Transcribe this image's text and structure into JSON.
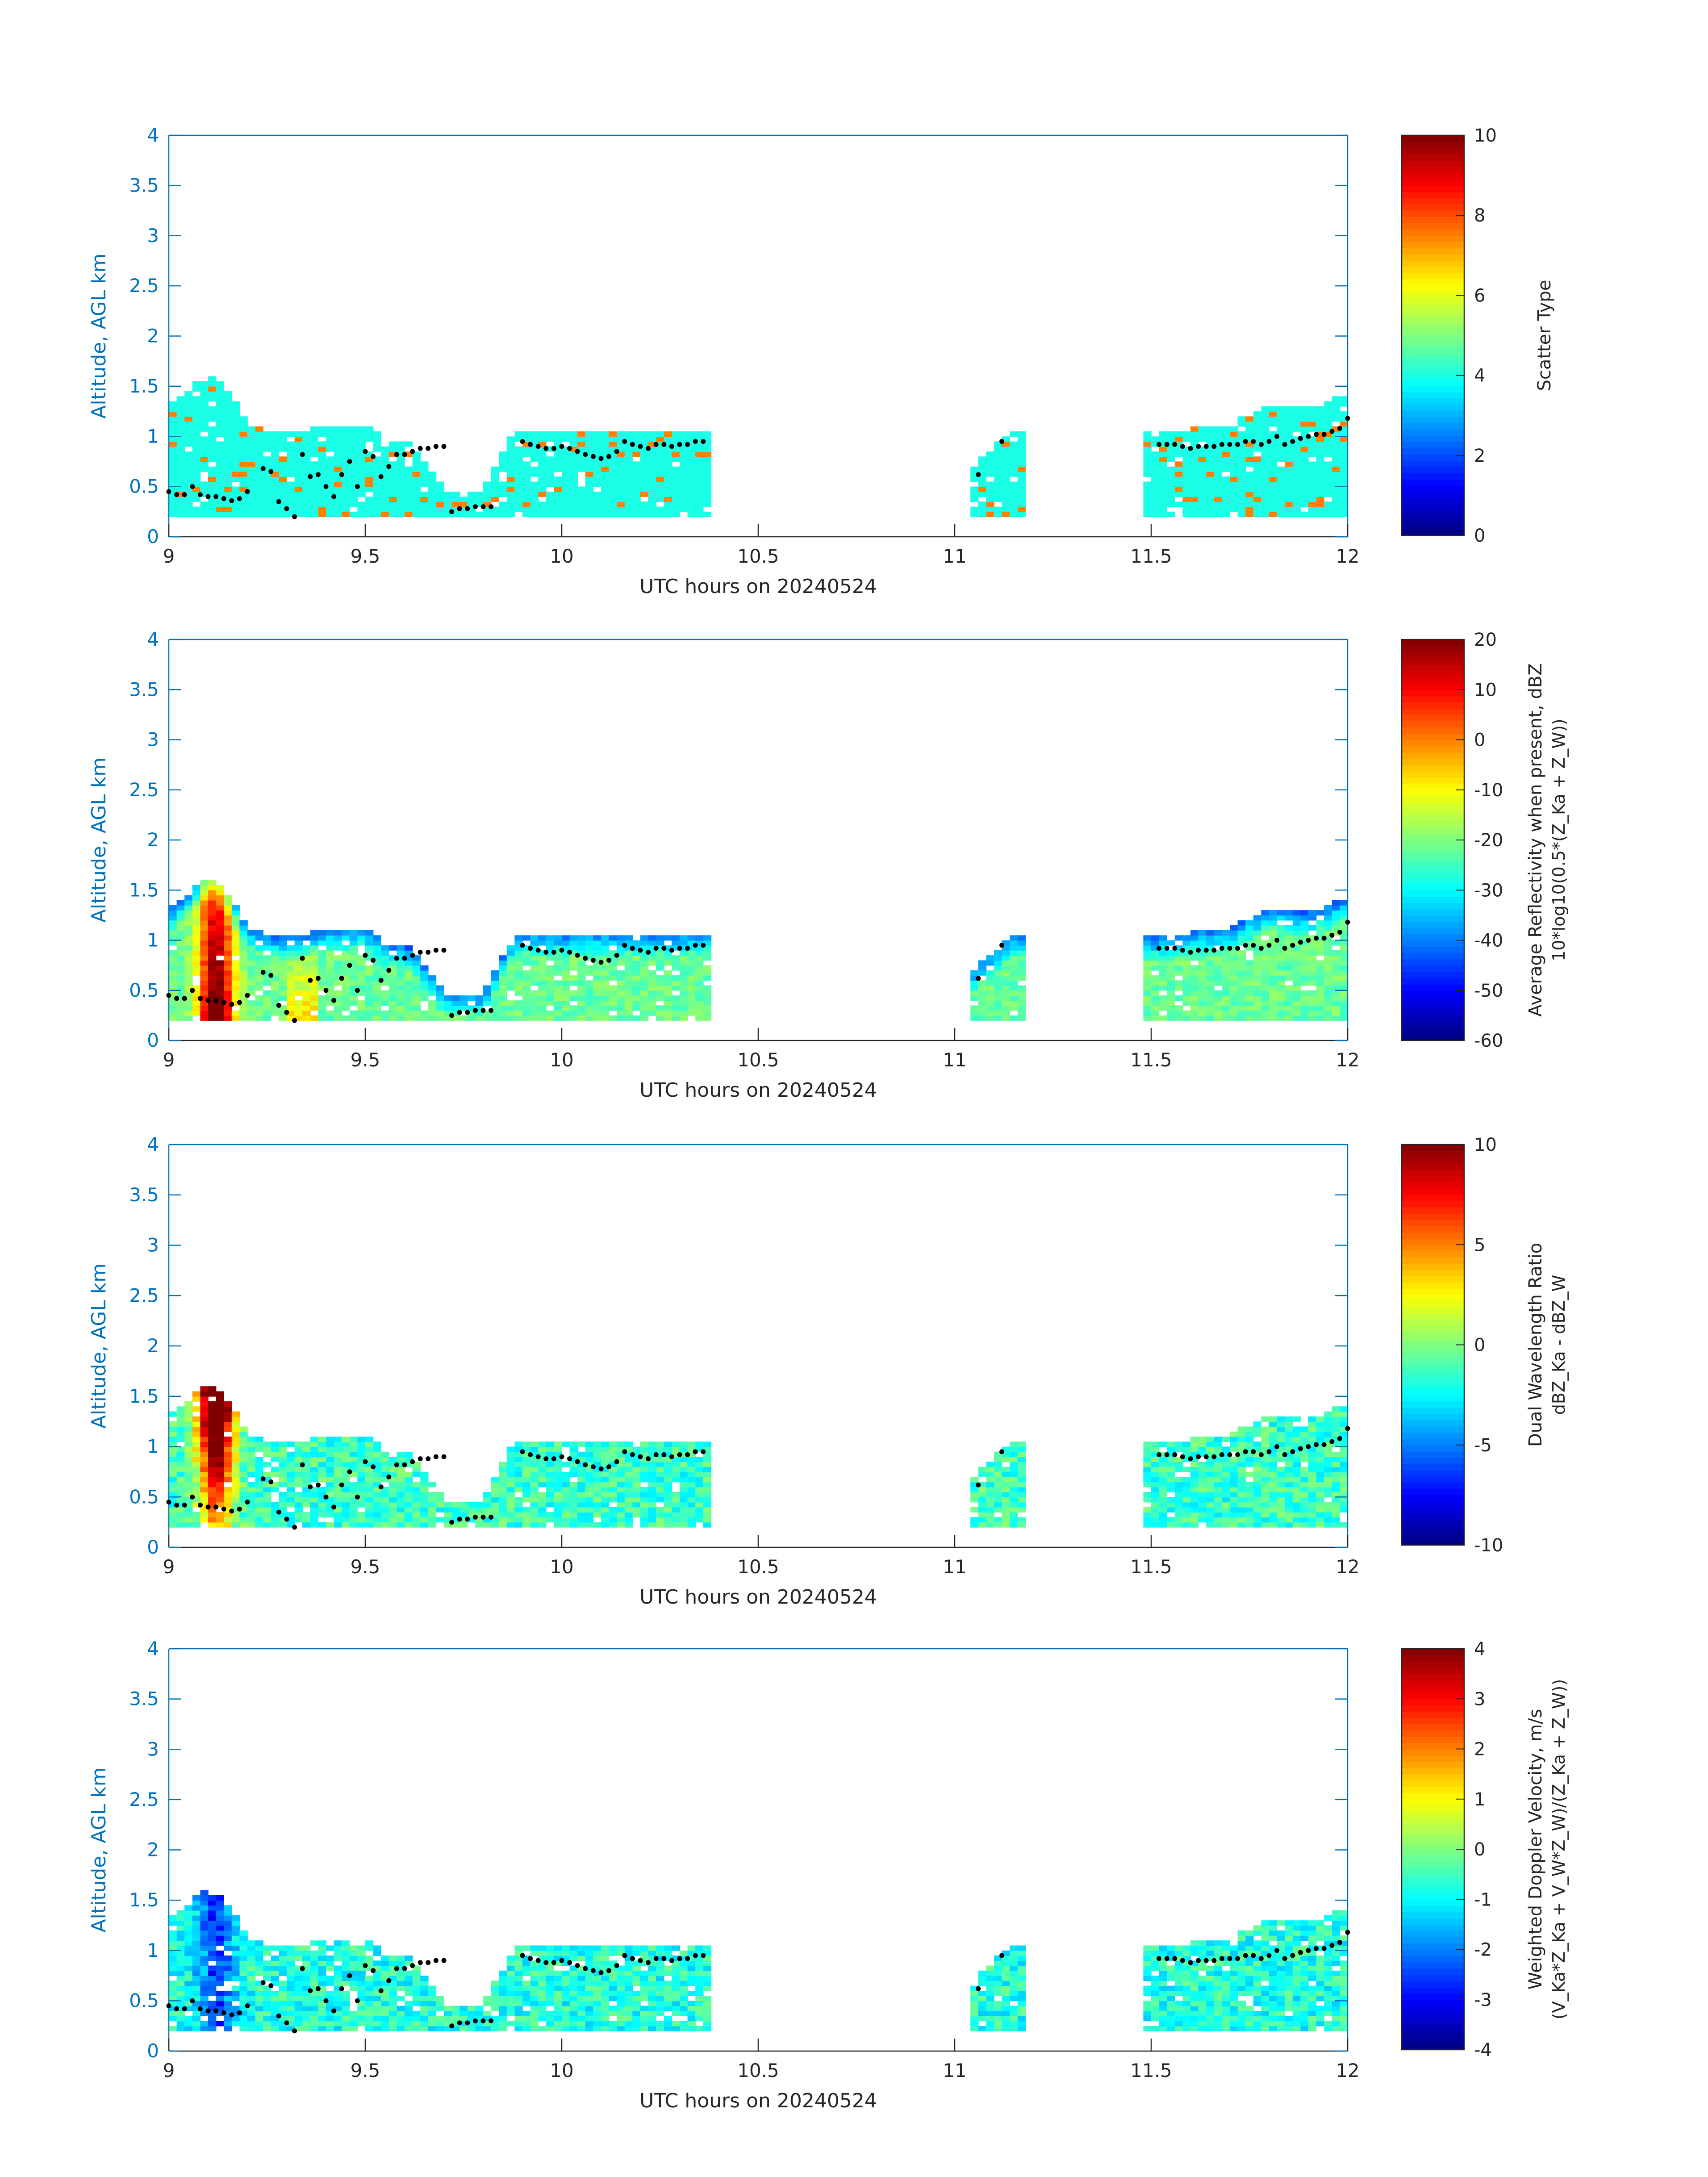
{
  "figure": {
    "xlabel": "UTC hours on 20240524",
    "ylabel": "Altitude, AGL km",
    "colors": {
      "axis_blue": "#0072bd",
      "axis_black": "#262626",
      "dot": "#000000"
    }
  },
  "chart_data": [
    {
      "type": "heatmap",
      "panel": "scatter-type",
      "xlabel": "UTC hours on 20240524",
      "ylabel": "Altitude, AGL km",
      "xlim": [
        9,
        12
      ],
      "ylim": [
        0,
        4
      ],
      "xticks": [
        "9",
        "9.5",
        "10",
        "10.5",
        "11",
        "11.5",
        "12"
      ],
      "yticks": [
        "0",
        "0.5",
        "1",
        "1.5",
        "2",
        "2.5",
        "3",
        "3.5",
        "4"
      ],
      "colorbar": {
        "label": "Scatter Type",
        "label2": "",
        "range": [
          0,
          10
        ],
        "ticks": [
          "0",
          "2",
          "4",
          "6",
          "8",
          "10"
        ]
      },
      "clim": [
        0,
        10
      ],
      "field": "scatter",
      "value_hint": "4 (cyan) for cloud, 7.5 (orange-red) for isolated echoes",
      "cloud_top_km": [
        [
          9.0,
          1.3
        ],
        [
          9.05,
          1.45
        ],
        [
          9.1,
          1.6
        ],
        [
          9.15,
          1.45
        ],
        [
          9.2,
          1.1
        ],
        [
          9.3,
          1.0
        ],
        [
          9.4,
          1.1
        ],
        [
          9.5,
          1.1
        ],
        [
          9.55,
          0.95
        ],
        [
          9.62,
          0.9
        ],
        [
          9.7,
          0.45
        ],
        [
          9.8,
          0.45
        ],
        [
          9.88,
          1.05
        ],
        [
          10.0,
          1.05
        ],
        [
          10.1,
          1.05
        ],
        [
          10.2,
          1.05
        ],
        [
          10.36,
          1.05
        ],
        [
          11.05,
          0.7
        ],
        [
          11.15,
          1.05
        ],
        [
          11.5,
          1.0
        ],
        [
          11.6,
          1.05
        ],
        [
          11.7,
          1.1
        ],
        [
          11.8,
          1.3
        ],
        [
          11.9,
          1.25
        ],
        [
          12.0,
          1.4
        ]
      ]
    },
    {
      "type": "heatmap",
      "panel": "reflectivity",
      "xlabel": "UTC hours on 20240524",
      "ylabel": "Altitude, AGL km",
      "xlim": [
        9,
        12
      ],
      "ylim": [
        0,
        4
      ],
      "xticks": [
        "9",
        "9.5",
        "10",
        "10.5",
        "11",
        "11.5",
        "12"
      ],
      "yticks": [
        "0",
        "0.5",
        "1",
        "1.5",
        "2",
        "2.5",
        "3",
        "3.5",
        "4"
      ],
      "colorbar": {
        "label": "Average Reflectivity when present, dBZ",
        "label2": "10*log10(0.5*(Z_Ka + Z_W))",
        "range": [
          -60,
          20
        ],
        "ticks": [
          "-60",
          "-50",
          "-40",
          "-30",
          "-20",
          "-10",
          "0",
          "10",
          "20"
        ]
      },
      "clim": [
        -60,
        20
      ],
      "field": "reflectivity",
      "value_hint": "up to ~15 dBZ near 9.1 h, -40 to -50 dBZ at cloud edges"
    },
    {
      "type": "heatmap",
      "panel": "dual-wavelength-ratio",
      "xlabel": "UTC hours on 20240524",
      "ylabel": "Altitude, AGL km",
      "xlim": [
        9,
        12
      ],
      "ylim": [
        0,
        4
      ],
      "xticks": [
        "9",
        "9.5",
        "10",
        "10.5",
        "11",
        "11.5",
        "12"
      ],
      "yticks": [
        "0",
        "0.5",
        "1",
        "1.5",
        "2",
        "2.5",
        "3",
        "3.5",
        "4"
      ],
      "colorbar": {
        "label": "Dual Wavelength Ratio",
        "label2": "dBZ_Ka - dBZ_W",
        "range": [
          -10,
          10
        ],
        "ticks": [
          "-10",
          "-5",
          "0",
          "5",
          "10"
        ]
      },
      "clim": [
        -10,
        10
      ],
      "field": "dwr",
      "value_hint": "up to ~8 dB near 9.1 h, mostly -3 to 2 dB elsewhere"
    },
    {
      "type": "heatmap",
      "panel": "doppler-velocity",
      "xlabel": "UTC hours on 20240524",
      "ylabel": "Altitude, AGL km",
      "xlim": [
        9,
        12
      ],
      "ylim": [
        0,
        4
      ],
      "xticks": [
        "9",
        "9.5",
        "10",
        "10.5",
        "11",
        "11.5",
        "12"
      ],
      "yticks": [
        "0",
        "0.5",
        "1",
        "1.5",
        "2",
        "2.5",
        "3",
        "3.5",
        "4"
      ],
      "colorbar": {
        "label": "Weighted Doppler Velocity, m/s",
        "label2": "(V_Ka*Z_Ka + V_W*Z_W)/(Z_Ka + Z_W))",
        "range": [
          -4,
          4
        ],
        "ticks": [
          "-4",
          "-3",
          "-2",
          "-1",
          "0",
          "1",
          "2",
          "3",
          "4"
        ]
      },
      "clim": [
        -4,
        4
      ],
      "field": "velocity",
      "value_hint": "about -2.5 m/s near 9.1 h, -1 to 0 m/s elsewhere"
    }
  ],
  "cloud_base_dots_km": [
    [
      9.0,
      0.45
    ],
    [
      9.02,
      0.42
    ],
    [
      9.04,
      0.42
    ],
    [
      9.06,
      0.5
    ],
    [
      9.08,
      0.42
    ],
    [
      9.1,
      0.4
    ],
    [
      9.12,
      0.4
    ],
    [
      9.14,
      0.38
    ],
    [
      9.16,
      0.36
    ],
    [
      9.18,
      0.38
    ],
    [
      9.2,
      0.45
    ],
    [
      9.24,
      0.68
    ],
    [
      9.26,
      0.65
    ],
    [
      9.28,
      0.35
    ],
    [
      9.3,
      0.28
    ],
    [
      9.32,
      0.2
    ],
    [
      9.34,
      0.82
    ],
    [
      9.36,
      0.6
    ],
    [
      9.38,
      0.62
    ],
    [
      9.4,
      0.5
    ],
    [
      9.42,
      0.4
    ],
    [
      9.44,
      0.62
    ],
    [
      9.46,
      0.75
    ],
    [
      9.48,
      0.5
    ],
    [
      9.5,
      0.85
    ],
    [
      9.52,
      0.8
    ],
    [
      9.54,
      0.6
    ],
    [
      9.56,
      0.7
    ],
    [
      9.58,
      0.82
    ],
    [
      9.6,
      0.82
    ],
    [
      9.62,
      0.85
    ],
    [
      9.64,
      0.88
    ],
    [
      9.66,
      0.88
    ],
    [
      9.68,
      0.9
    ],
    [
      9.7,
      0.9
    ],
    [
      9.72,
      0.25
    ],
    [
      9.74,
      0.28
    ],
    [
      9.76,
      0.28
    ],
    [
      9.78,
      0.3
    ],
    [
      9.8,
      0.3
    ],
    [
      9.82,
      0.3
    ],
    [
      9.9,
      0.95
    ],
    [
      9.92,
      0.92
    ],
    [
      9.94,
      0.9
    ],
    [
      9.96,
      0.88
    ],
    [
      9.98,
      0.88
    ],
    [
      10.0,
      0.9
    ],
    [
      10.02,
      0.88
    ],
    [
      10.04,
      0.85
    ],
    [
      10.06,
      0.82
    ],
    [
      10.08,
      0.8
    ],
    [
      10.1,
      0.78
    ],
    [
      10.12,
      0.8
    ],
    [
      10.14,
      0.85
    ],
    [
      10.16,
      0.95
    ],
    [
      10.18,
      0.92
    ],
    [
      10.2,
      0.9
    ],
    [
      10.22,
      0.88
    ],
    [
      10.24,
      0.92
    ],
    [
      10.26,
      0.92
    ],
    [
      10.28,
      0.9
    ],
    [
      10.3,
      0.92
    ],
    [
      10.32,
      0.92
    ],
    [
      10.34,
      0.95
    ],
    [
      10.36,
      0.95
    ],
    [
      11.06,
      0.62
    ],
    [
      11.12,
      0.95
    ],
    [
      11.52,
      0.92
    ],
    [
      11.54,
      0.92
    ],
    [
      11.56,
      0.92
    ],
    [
      11.58,
      0.9
    ],
    [
      11.6,
      0.88
    ],
    [
      11.62,
      0.9
    ],
    [
      11.64,
      0.9
    ],
    [
      11.66,
      0.9
    ],
    [
      11.68,
      0.92
    ],
    [
      11.7,
      0.92
    ],
    [
      11.72,
      0.92
    ],
    [
      11.74,
      0.95
    ],
    [
      11.76,
      0.95
    ],
    [
      11.78,
      0.92
    ],
    [
      11.8,
      0.95
    ],
    [
      11.82,
      1.0
    ],
    [
      11.84,
      0.92
    ],
    [
      11.86,
      0.95
    ],
    [
      11.88,
      0.98
    ],
    [
      11.9,
      1.0
    ],
    [
      11.92,
      1.02
    ],
    [
      11.94,
      1.02
    ],
    [
      11.96,
      1.05
    ],
    [
      11.98,
      1.08
    ],
    [
      12.0,
      1.18
    ]
  ]
}
